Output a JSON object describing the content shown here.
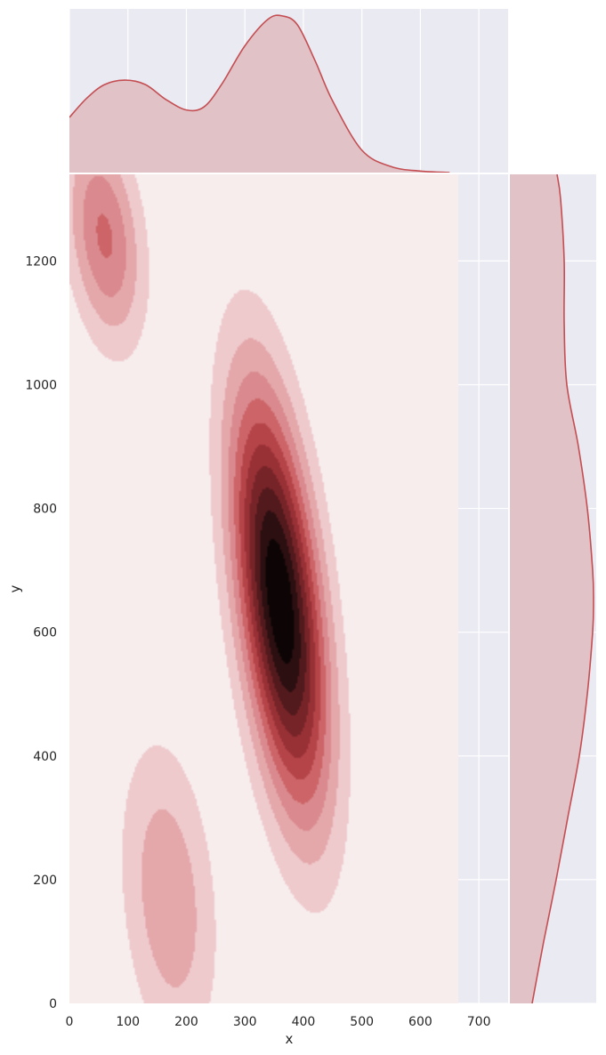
{
  "chart_data": {
    "type": "kde_joint",
    "xlabel": "x",
    "ylabel": "y",
    "xlim": [
      0,
      750
    ],
    "ylim": [
      0,
      1340
    ],
    "x_ticks": [
      0,
      100,
      200,
      300,
      400,
      500,
      600,
      700
    ],
    "y_ticks": [
      0,
      200,
      400,
      600,
      800,
      1000,
      1200
    ],
    "grid": true,
    "colors": {
      "panel_background": "#eaeaf2",
      "grid": "#ffffff",
      "marginal_line": "#c44e52",
      "marginal_fill": "#e0c2c7",
      "contour_levels": [
        "#f7eded",
        "#efcacd",
        "#e4a8ab",
        "#da8a8e",
        "#cc6468",
        "#b54448",
        "#983136",
        "#772428",
        "#521a1d",
        "#2b0f11",
        "#0d0505"
      ]
    },
    "density_components": [
      {
        "mean": [
          360,
          650
        ],
        "sd": [
          55,
          230
        ],
        "rho": -0.5,
        "weight": 1.0
      },
      {
        "mean": [
          60,
          1240
        ],
        "sd": [
          45,
          120
        ],
        "rho": -0.3,
        "weight": 0.38
      },
      {
        "mean": [
          170,
          170
        ],
        "sd": [
          55,
          170
        ],
        "rho": -0.25,
        "weight": 0.26
      }
    ],
    "marginal_x": {
      "x": [
        0,
        30,
        60,
        95,
        130,
        165,
        200,
        230,
        260,
        300,
        340,
        365,
        390,
        420,
        450,
        500,
        550,
        600,
        650
      ],
      "density": [
        0.37,
        0.5,
        0.59,
        0.62,
        0.59,
        0.49,
        0.42,
        0.44,
        0.59,
        0.85,
        1.03,
        1.05,
        0.99,
        0.75,
        0.48,
        0.15,
        0.04,
        0.01,
        0.0
      ]
    },
    "marginal_y": {
      "y": [
        0,
        100,
        200,
        300,
        400,
        500,
        600,
        650,
        700,
        800,
        900,
        1000,
        1100,
        1200,
        1300,
        1340
      ],
      "density": [
        0.25,
        0.38,
        0.52,
        0.65,
        0.78,
        0.87,
        0.93,
        0.94,
        0.93,
        0.87,
        0.77,
        0.64,
        0.61,
        0.61,
        0.57,
        0.53
      ]
    }
  }
}
